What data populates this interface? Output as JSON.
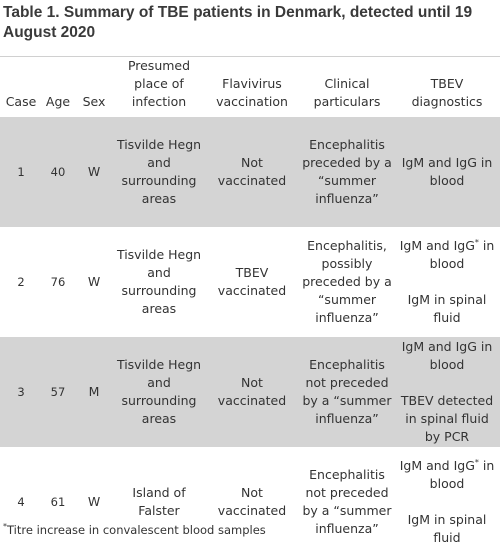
{
  "title": "Table 1. Summary of TBE patients in Denmark, detected until 19 August 2020",
  "columns": {
    "case": "Case",
    "age": "Age",
    "sex": "Sex",
    "place": "Presumed place of infection",
    "vaccination": "Flavivirus vaccination",
    "clinical": "Clinical particulars",
    "diagnostics": "TBEV diagnostics"
  },
  "rows": [
    {
      "case": "1",
      "age": "40",
      "sex": "W",
      "place": "Tisvilde Hegn and surrounding areas",
      "vaccination": "Not vaccinated",
      "clinical": "Encephalitis preceded by a “summer influenza”",
      "diagnostics": [
        {
          "text": "IgM and IgG in blood",
          "mark": ""
        }
      ]
    },
    {
      "case": "2",
      "age": "76",
      "sex": "W",
      "place": "Tisvilde Hegn and surrounding areas",
      "vaccination": "TBEV vaccinated",
      "clinical": "Encephalitis, possibly preceded by a “summer influenza”",
      "diagnostics": [
        {
          "text": "IgM and IgG",
          "mark": "*",
          "text2": " in blood"
        },
        {
          "text": "IgM in spinal fluid",
          "mark": ""
        }
      ]
    },
    {
      "case": "3",
      "age": "57",
      "sex": "M",
      "place": "Tisvilde Hegn and surrounding areas",
      "vaccination": "Not vaccinated",
      "clinical": "Encephalitis not preceded by a “summer influenza”",
      "diagnostics": [
        {
          "text": "IgM and IgG in blood",
          "mark": ""
        },
        {
          "text": "TBEV detected in spinal fluid by PCR",
          "mark": ""
        }
      ]
    },
    {
      "case": "4",
      "age": "61",
      "sex": "W",
      "place": "Island of Falster",
      "vaccination": "Not vaccinated",
      "clinical": "Encephalitis not preceded by a “summer influenza”",
      "diagnostics": [
        {
          "text": "IgM and IgG",
          "mark": "*",
          "text2": " in blood"
        },
        {
          "text": "IgM in spinal fluid",
          "mark": ""
        }
      ]
    }
  ],
  "footnote": {
    "mark": "*",
    "text": "Titre increase in convalescent blood samples"
  },
  "colors": {
    "shade": "#d4d4d4",
    "text": "#333333"
  }
}
